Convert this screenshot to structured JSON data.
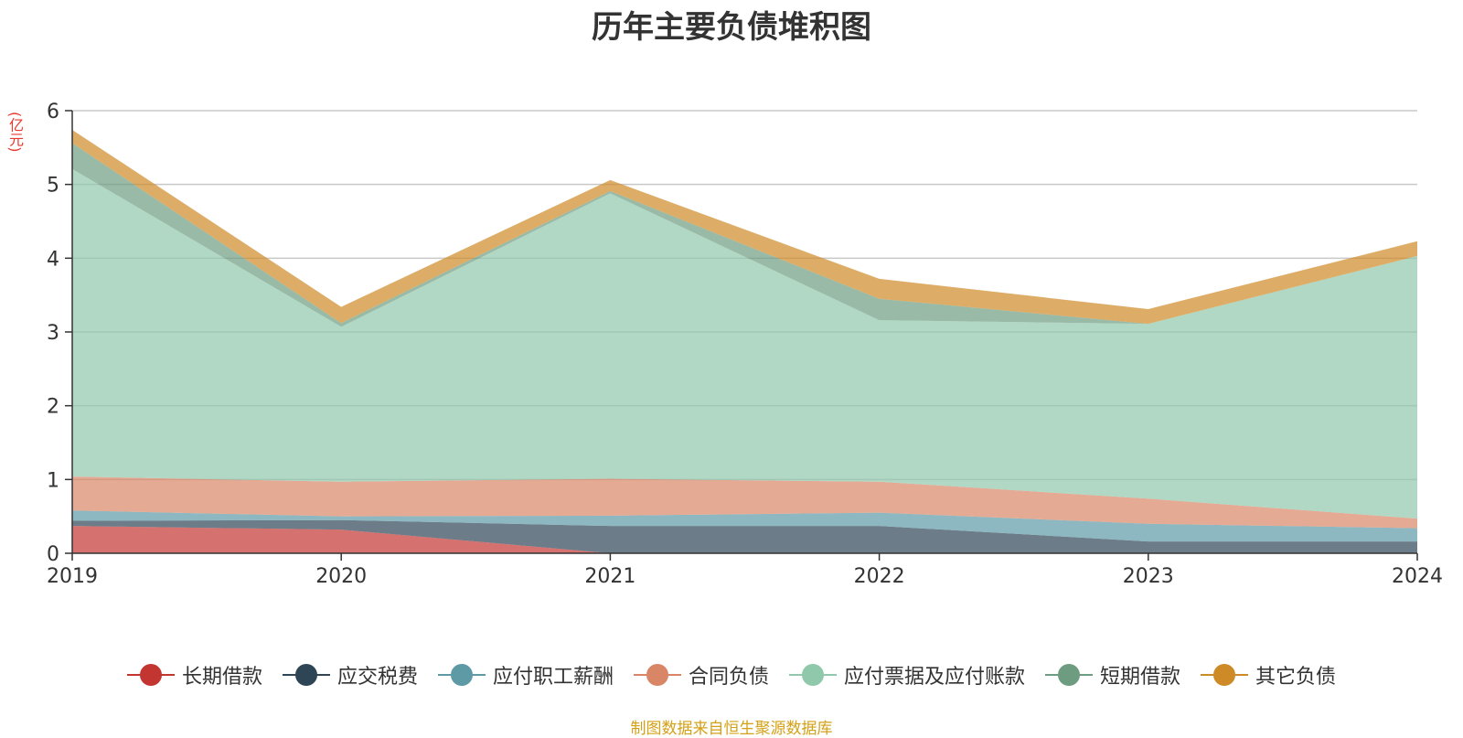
{
  "chart_data": {
    "type": "area",
    "title": "历年主要负债堆积图",
    "y_unit": "(亿元)",
    "x": [
      "2019",
      "2020",
      "2021",
      "2022",
      "2023",
      "2024"
    ],
    "ylim": [
      0,
      6
    ],
    "yticks": [
      "0",
      "1",
      "2",
      "3",
      "4",
      "5",
      "6"
    ],
    "grid": true,
    "stacked": true,
    "legend_position": "bottom",
    "series": [
      {
        "name": "长期借款",
        "color": "#c33531",
        "values": [
          0.37,
          0.32,
          0.0,
          0.0,
          0.0,
          0.0
        ]
      },
      {
        "name": "应交税费",
        "color": "#2e4556",
        "values": [
          0.07,
          0.13,
          0.37,
          0.37,
          0.16,
          0.16
        ]
      },
      {
        "name": "应付职工薪酬",
        "color": "#5d9aa6",
        "values": [
          0.14,
          0.05,
          0.14,
          0.18,
          0.24,
          0.18
        ]
      },
      {
        "name": "合同负债",
        "color": "#d88666",
        "values": [
          0.46,
          0.47,
          0.5,
          0.42,
          0.34,
          0.13
        ]
      },
      {
        "name": "应付票据及应付账款",
        "color": "#90c8ab",
        "values": [
          4.17,
          2.1,
          3.87,
          2.19,
          2.37,
          3.56
        ]
      },
      {
        "name": "短期借款",
        "color": "#6e9c80",
        "values": [
          0.35,
          0.05,
          0.03,
          0.29,
          0.0,
          0.0
        ]
      },
      {
        "name": "其它负债",
        "color": "#cf8a28",
        "values": [
          0.18,
          0.22,
          0.15,
          0.27,
          0.2,
          0.2
        ]
      }
    ]
  },
  "source_note": "制图数据来自恒生聚源数据库"
}
